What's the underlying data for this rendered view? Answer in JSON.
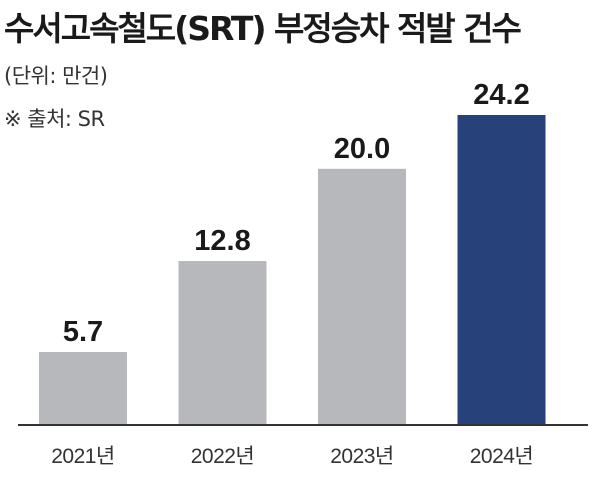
{
  "title": "수서고속철도(SRT) 부정승차 적발 건수",
  "unit_note": "(단위: 만건)",
  "source_note": "※ 출처: SR",
  "chart_data": {
    "type": "bar",
    "title": "수서고속철도(SRT) 부정승차 적발 건수",
    "categories": [
      "2021년",
      "2022년",
      "2023년",
      "2024년"
    ],
    "values": [
      5.7,
      12.8,
      20.0,
      24.2
    ],
    "value_labels": [
      "5.7",
      "12.8",
      "20.0",
      "24.2"
    ],
    "ylim": [
      0,
      24.2
    ],
    "grid": false,
    "legend": "none",
    "colors": {
      "default_bar": "#b7b8bc",
      "highlight_bar": "#27427a",
      "baseline": "#333333"
    },
    "highlight_index": 3
  }
}
